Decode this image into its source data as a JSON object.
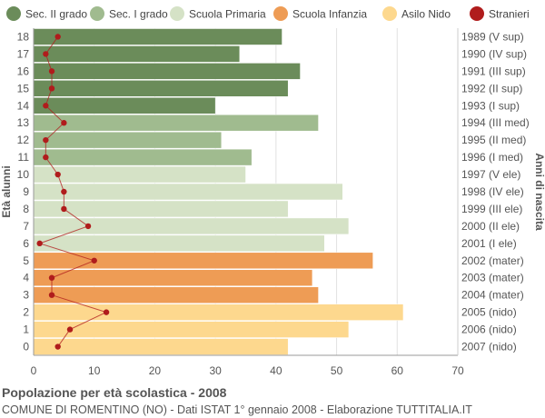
{
  "chart_data": {
    "type": "bar",
    "orientation": "horizontal",
    "title": "Popolazione per età scolastica - 2008",
    "subtitle": "COMUNE DI ROMENTINO (NO) - Dati ISTAT 1° gennaio 2008 - Elaborazione TUTTITALIA.IT",
    "ylabel_left": "Età alunni",
    "ylabel_right": "Anni di nascita",
    "xlim": [
      0,
      70
    ],
    "xticks": [
      0,
      10,
      20,
      30,
      40,
      50,
      60,
      70
    ],
    "grid": true,
    "legend_position": "top",
    "legend": [
      {
        "name": "Sec. II grado",
        "color": "#6b8c5a"
      },
      {
        "name": "Sec. I grado",
        "color": "#a0bb8f"
      },
      {
        "name": "Scuola Primaria",
        "color": "#d5e2c6"
      },
      {
        "name": "Scuola Infanzia",
        "color": "#ee9c55"
      },
      {
        "name": "Asilo Nido",
        "color": "#fdd88e"
      },
      {
        "name": "Stranieri",
        "color": "#b01c1c"
      }
    ],
    "rows": [
      {
        "age": "18",
        "year": "1989 (V sup)",
        "value": 41,
        "stranieri": 4,
        "group": 0
      },
      {
        "age": "17",
        "year": "1990 (IV sup)",
        "value": 34,
        "stranieri": 2,
        "group": 0
      },
      {
        "age": "16",
        "year": "1991 (III sup)",
        "value": 44,
        "stranieri": 3,
        "group": 0
      },
      {
        "age": "15",
        "year": "1992 (II sup)",
        "value": 42,
        "stranieri": 3,
        "group": 0
      },
      {
        "age": "14",
        "year": "1993 (I sup)",
        "value": 30,
        "stranieri": 2,
        "group": 0
      },
      {
        "age": "13",
        "year": "1994 (III med)",
        "value": 47,
        "stranieri": 5,
        "group": 1
      },
      {
        "age": "12",
        "year": "1995 (II med)",
        "value": 31,
        "stranieri": 2,
        "group": 1
      },
      {
        "age": "11",
        "year": "1996 (I med)",
        "value": 36,
        "stranieri": 2,
        "group": 1
      },
      {
        "age": "10",
        "year": "1997 (V ele)",
        "value": 35,
        "stranieri": 4,
        "group": 2
      },
      {
        "age": "9",
        "year": "1998 (IV ele)",
        "value": 51,
        "stranieri": 5,
        "group": 2
      },
      {
        "age": "8",
        "year": "1999 (III ele)",
        "value": 42,
        "stranieri": 5,
        "group": 2
      },
      {
        "age": "7",
        "year": "2000 (II ele)",
        "value": 52,
        "stranieri": 9,
        "group": 2
      },
      {
        "age": "6",
        "year": "2001 (I ele)",
        "value": 48,
        "stranieri": 1,
        "group": 2
      },
      {
        "age": "5",
        "year": "2002 (mater)",
        "value": 56,
        "stranieri": 10,
        "group": 3
      },
      {
        "age": "4",
        "year": "2003 (mater)",
        "value": 46,
        "stranieri": 3,
        "group": 3
      },
      {
        "age": "3",
        "year": "2004 (mater)",
        "value": 47,
        "stranieri": 3,
        "group": 3
      },
      {
        "age": "2",
        "year": "2005 (nido)",
        "value": 61,
        "stranieri": 12,
        "group": 4
      },
      {
        "age": "1",
        "year": "2006 (nido)",
        "value": 52,
        "stranieri": 6,
        "group": 4
      },
      {
        "age": "0",
        "year": "2007 (nido)",
        "value": 42,
        "stranieri": 4,
        "group": 4
      }
    ],
    "colors": {
      "bar_stroke": "#ffffff",
      "stranieri_line": "#b01c1c",
      "grid": "#e2e2e2",
      "axis_text": "#555555"
    }
  }
}
